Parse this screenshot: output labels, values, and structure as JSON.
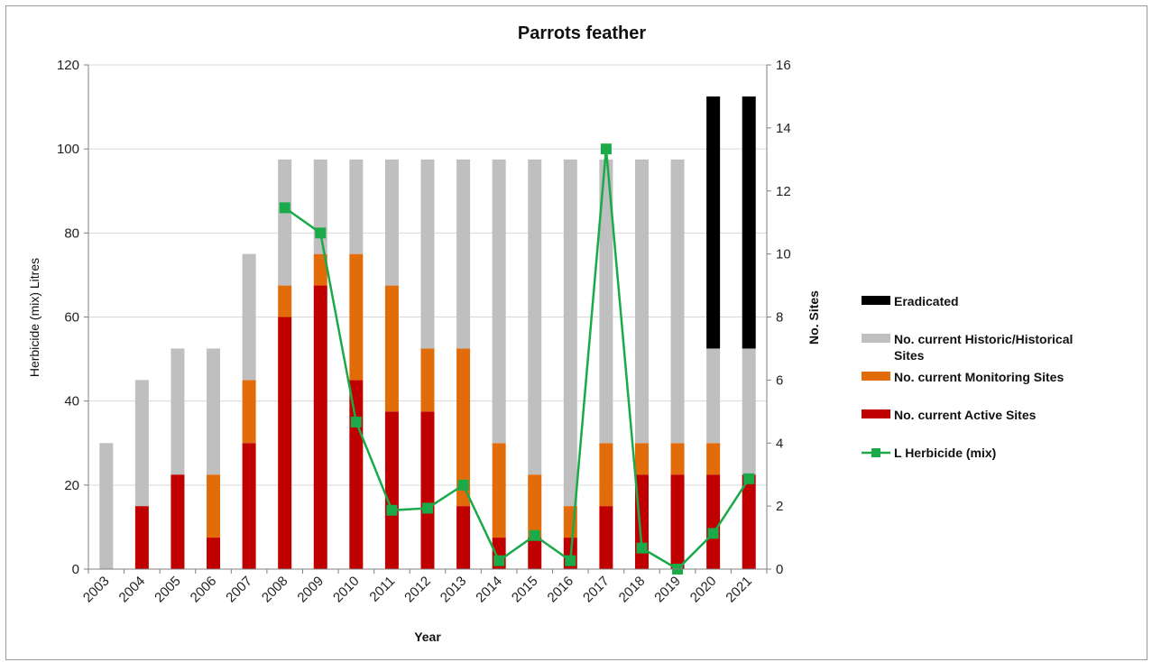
{
  "chart_data": {
    "type": "bar",
    "title": "Parrots feather",
    "xlabel": "Year",
    "ylabel_left": "Herbicide (mix) Litres",
    "ylabel_right": "No. Sites",
    "ylim_left": [
      0,
      120
    ],
    "ylim_right": [
      0,
      16
    ],
    "yticks_left": [
      "0",
      "20",
      "40",
      "60",
      "80",
      "100",
      "120"
    ],
    "yticks_right": [
      "0",
      "2",
      "4",
      "6",
      "8",
      "10",
      "12",
      "14",
      "16"
    ],
    "grid": true,
    "legend_position": "right",
    "categories": [
      "2003",
      "2004",
      "2005",
      "2006",
      "2007",
      "2008",
      "2009",
      "2010",
      "2011",
      "2012",
      "2013",
      "2014",
      "2015",
      "2016",
      "2017",
      "2018",
      "2019",
      "2020",
      "2021"
    ],
    "stacked_series": [
      {
        "name": "No. current Active Sites",
        "color": "#c00000",
        "axis": "right",
        "values": [
          0,
          2,
          3,
          1,
          4,
          8,
          9,
          6,
          5,
          5,
          2,
          1,
          1,
          1,
          2,
          3,
          3,
          3,
          3
        ]
      },
      {
        "name": "No. current Monitoring Sites",
        "color": "#e36c0a",
        "axis": "right",
        "values": [
          0,
          0,
          0,
          2,
          2,
          1,
          1,
          4,
          4,
          2,
          5,
          3,
          2,
          1,
          2,
          1,
          1,
          1,
          0
        ]
      },
      {
        "name": "No. current Historic/Historical Sites",
        "color": "#bfbfbf",
        "axis": "right",
        "values": [
          4,
          4,
          4,
          4,
          4,
          4,
          3,
          3,
          4,
          6,
          6,
          9,
          10,
          11,
          9,
          9,
          9,
          3,
          4
        ]
      },
      {
        "name": "Eradicated",
        "color": "#000000",
        "axis": "right",
        "values": [
          0,
          0,
          0,
          0,
          0,
          0,
          0,
          0,
          0,
          0,
          0,
          0,
          0,
          0,
          0,
          0,
          0,
          8,
          8
        ]
      }
    ],
    "line_series": {
      "name": "L Herbicide (mix)",
      "color": "#1aaa4a",
      "axis": "left",
      "values": [
        null,
        null,
        null,
        null,
        null,
        86,
        80,
        35,
        14,
        14.5,
        20,
        2,
        8,
        2,
        100,
        5,
        0,
        8.5,
        21.5
      ]
    },
    "legend": [
      {
        "label": "Eradicated",
        "color": "#000000",
        "kind": "bar"
      },
      {
        "label": "No. current Historic/Historical Sites",
        "color": "#bfbfbf",
        "kind": "bar"
      },
      {
        "label": "No. current Monitoring Sites",
        "color": "#e36c0a",
        "kind": "bar"
      },
      {
        "label": "No. current Active Sites",
        "color": "#c00000",
        "kind": "bar"
      },
      {
        "label": "L Herbicide (mix)",
        "color": "#1aaa4a",
        "kind": "line"
      }
    ]
  }
}
